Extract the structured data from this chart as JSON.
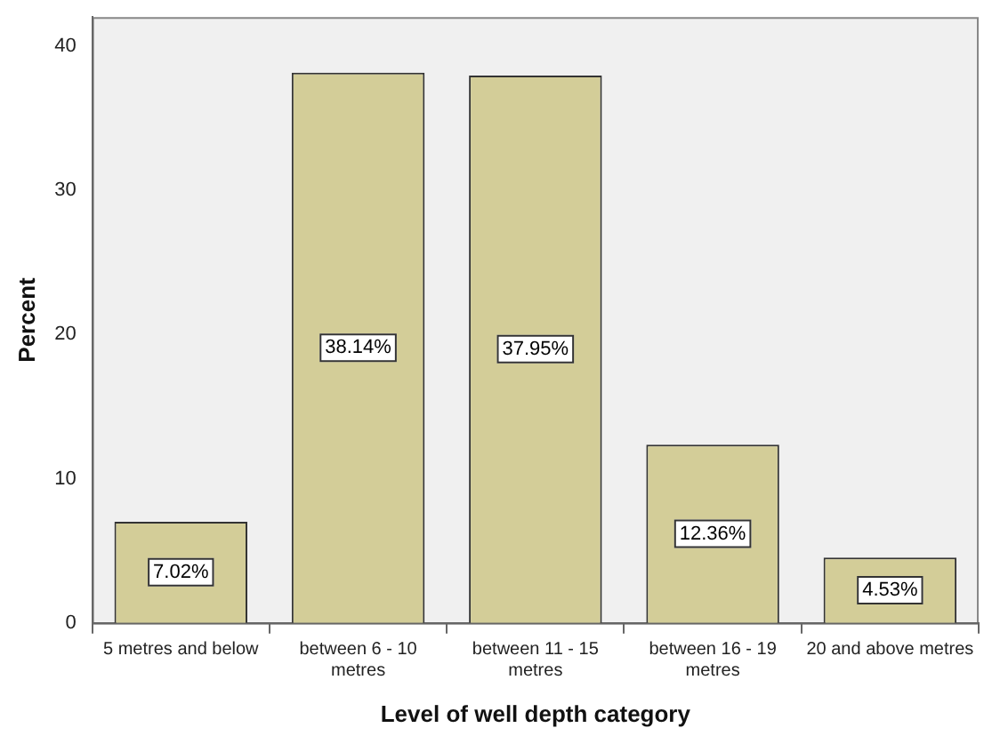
{
  "chart_data": {
    "type": "bar",
    "xlabel": "Level of well depth category",
    "ylabel": "Percent",
    "categories": [
      "5 metres and below",
      "between 6 - 10 metres",
      "between 11 - 15 metres",
      "between 16 - 19 metres",
      "20 and above metres"
    ],
    "values": [
      7.02,
      38.14,
      37.95,
      12.36,
      4.53
    ],
    "value_labels": [
      "7.02%",
      "38.14%",
      "37.95%",
      "12.36%",
      "4.53%"
    ],
    "color": "#d3cd98",
    "ylim": [
      0,
      42
    ],
    "yticks": [
      0,
      10,
      20,
      30,
      40
    ],
    "grid": false,
    "legend": false
  }
}
